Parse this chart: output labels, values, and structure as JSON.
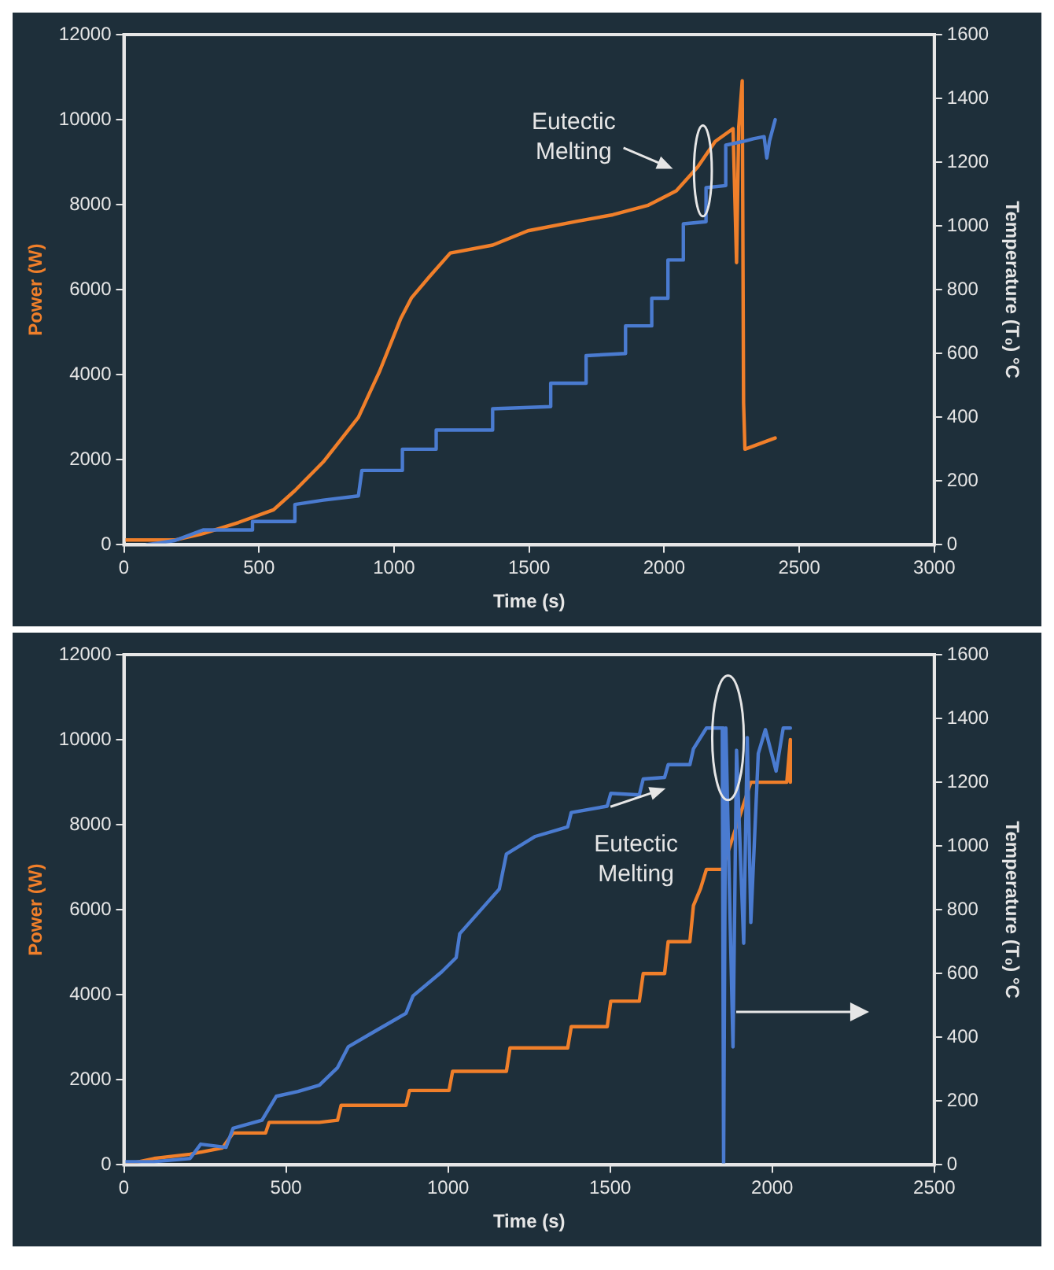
{
  "chart_data": [
    {
      "type": "line",
      "xlabel": "Time (s)",
      "ylabel": "Power (W)",
      "y2label": "Temperature (T₀) °C",
      "xlim": [
        0,
        3000
      ],
      "xticks": [
        0,
        500,
        1000,
        1500,
        2000,
        2500,
        3000
      ],
      "ylim": [
        0,
        12000
      ],
      "yticks": [
        0,
        2000,
        4000,
        6000,
        8000,
        10000,
        12000
      ],
      "y2lim": [
        0,
        1600
      ],
      "y2ticks": [
        0,
        200,
        400,
        600,
        800,
        1000,
        1200,
        1400,
        1600
      ],
      "legend": false,
      "grid": false,
      "marker": "none",
      "annotations": [
        "Eutectic Melting"
      ],
      "series": [
        {
          "color": "#4a7bd0",
          "x": [
            84,
            188,
            293,
            476,
            476,
            633,
            633,
            738,
            868,
            881,
            1031,
            1031,
            1156,
            1156,
            1365,
            1365,
            1580,
            1580,
            1711,
            1711,
            1857,
            1857,
            1954,
            1954,
            2014,
            2014,
            2071,
            2071,
            2155,
            2155,
            2228,
            2228,
            2300,
            2330,
            2370,
            2380,
            2390,
            2411
          ],
          "values": [
            0,
            100,
            350,
            350,
            550,
            550,
            950,
            1050,
            1150,
            1750,
            1750,
            2250,
            2250,
            2700,
            2700,
            3200,
            3250,
            3800,
            3800,
            4450,
            4500,
            5150,
            5150,
            5800,
            5800,
            6700,
            6700,
            7550,
            7600,
            8400,
            8450,
            9400,
            9500,
            9550,
            9600,
            9100,
            9500,
            10000
          ]
        },
        {
          "color": "#f07f2a",
          "axis": "y2",
          "x": [
            0,
            188,
            293,
            424,
            554,
            633,
            738,
            868,
            947,
            1025,
            1065,
            1130,
            1208,
            1365,
            1496,
            1679,
            1810,
            1941,
            2045,
            2124,
            2189,
            2255,
            2268,
            2276,
            2289,
            2294,
            2299,
            2411
          ],
          "values": [
            15,
            15,
            35,
            70,
            110,
            170,
            260,
            400,
            545,
            710,
            775,
            840,
            915,
            940,
            985,
            1015,
            1035,
            1065,
            1110,
            1185,
            1265,
            1305,
            885,
            1310,
            1455,
            445,
            300,
            335
          ]
        }
      ]
    },
    {
      "type": "line",
      "xlabel": "Time (s)",
      "ylabel": "Power (W)",
      "y2label": "Temperature (T₀) °C",
      "xlim": [
        0,
        2500
      ],
      "xticks": [
        0,
        500,
        1000,
        1500,
        2000,
        2500
      ],
      "ylim": [
        0,
        12000
      ],
      "yticks": [
        0,
        2000,
        4000,
        6000,
        8000,
        10000,
        12000
      ],
      "y2lim": [
        0,
        1600
      ],
      "y2ticks": [
        0,
        200,
        400,
        600,
        800,
        1000,
        1200,
        1400,
        1600
      ],
      "legend": false,
      "grid": false,
      "marker": "none",
      "annotations": [
        "Eutectic Melting"
      ],
      "series": [
        {
          "color": "#4a7bd0",
          "axis": "y2",
          "x": [
            0,
            93,
            204,
            237,
            315,
            337,
            426,
            470,
            537,
            603,
            659,
            692,
            759,
            870,
            892,
            980,
            1025,
            1036,
            1158,
            1180,
            1269,
            1369,
            1380,
            1491,
            1502,
            1590,
            1602,
            1668,
            1679,
            1746,
            1757,
            1797,
            1846,
            1850,
            1857,
            1868,
            1879,
            1890,
            1912,
            1923,
            1934,
            1957,
            1979,
            2012,
            2034,
            2056
          ],
          "values": [
            10,
            10,
            20,
            65,
            55,
            115,
            140,
            215,
            230,
            250,
            305,
            370,
            410,
            475,
            530,
            605,
            650,
            725,
            865,
            975,
            1030,
            1060,
            1105,
            1125,
            1165,
            1160,
            1210,
            1215,
            1255,
            1255,
            1305,
            1370,
            1370,
            0,
            1370,
            865,
            370,
            1300,
            695,
            1340,
            760,
            1290,
            1365,
            1235,
            1370,
            1370
          ]
        },
        {
          "color": "#f07f2a",
          "x": [
            0,
            93,
            204,
            304,
            337,
            437,
            448,
            603,
            659,
            670,
            870,
            881,
            1003,
            1014,
            1180,
            1191,
            1369,
            1380,
            1491,
            1502,
            1590,
            1602,
            1668,
            1679,
            1746,
            1757,
            1779,
            1797,
            1846,
            1934,
            2045,
            2056,
            2056
          ],
          "values": [
            0,
            150,
            250,
            400,
            750,
            750,
            1000,
            1000,
            1050,
            1400,
            1400,
            1750,
            1750,
            2200,
            2200,
            2750,
            2750,
            3250,
            3250,
            3850,
            3850,
            4500,
            4500,
            5250,
            5250,
            6100,
            6500,
            6950,
            6950,
            9000,
            9000,
            10000,
            9000
          ]
        }
      ]
    }
  ]
}
